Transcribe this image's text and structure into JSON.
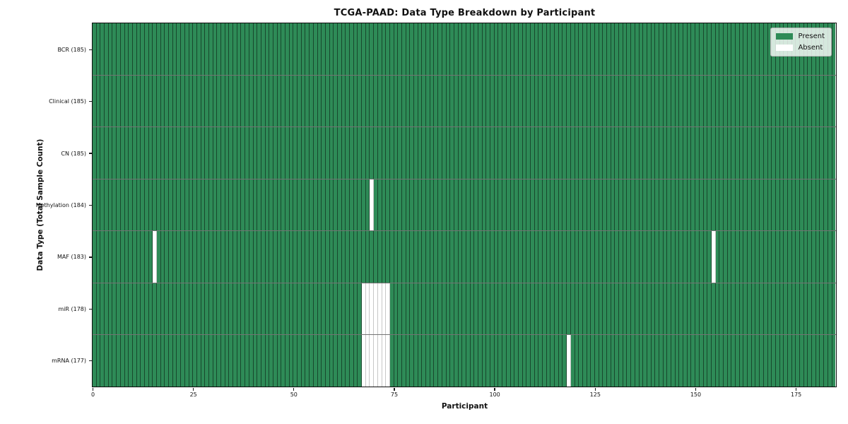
{
  "chart_data": {
    "type": "heatmap",
    "title": "TCGA-PAAD: Data Type Breakdown by Participant",
    "xlabel": "Participant",
    "ylabel": "Data Type (Total Sample Count)",
    "n_participants": 185,
    "xlim": [
      0,
      185
    ],
    "x_ticks": [
      0,
      25,
      50,
      75,
      100,
      125,
      150,
      175
    ],
    "grid": "per-cell borders",
    "rows": [
      {
        "name": "BCR",
        "total": 185,
        "label": "BCR (185)",
        "absent": []
      },
      {
        "name": "Clinical",
        "total": 185,
        "label": "Clinical (185)",
        "absent": []
      },
      {
        "name": "CN",
        "total": 185,
        "label": "CN (185)",
        "absent": []
      },
      {
        "name": "Methylation",
        "total": 184,
        "label": "Methylation (184)",
        "absent": [
          69
        ]
      },
      {
        "name": "MAF",
        "total": 183,
        "label": "MAF (183)",
        "absent": [
          15,
          154
        ]
      },
      {
        "name": "miR",
        "total": 178,
        "label": "miR (178)",
        "absent": [
          67,
          68,
          69,
          70,
          71,
          72,
          73
        ]
      },
      {
        "name": "mRNA",
        "total": 177,
        "label": "mRNA (177)",
        "absent": [
          67,
          68,
          69,
          70,
          71,
          72,
          73,
          118
        ]
      }
    ],
    "legend": {
      "position": "upper right",
      "entries": [
        {
          "label": "Present",
          "color": "#2e8b57"
        },
        {
          "label": "Absent",
          "color": "#ffffff"
        }
      ]
    },
    "colors": {
      "present": "#2e8b57",
      "absent": "#ffffff"
    }
  }
}
